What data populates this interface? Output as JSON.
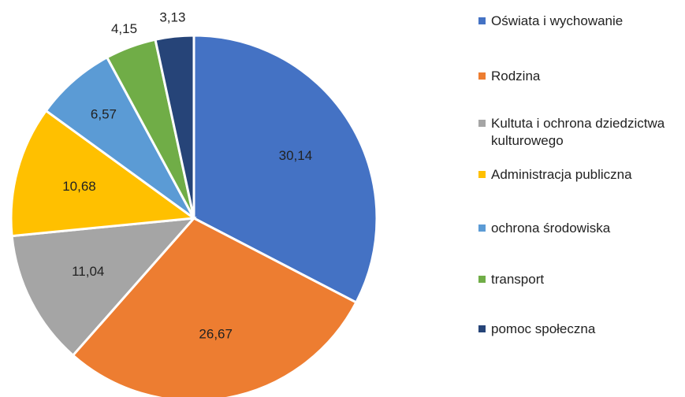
{
  "chart_data": {
    "type": "pie",
    "categories": [
      "Oświata i wychowanie",
      "Rodzina",
      "Kultuta i ochrona dziedzictwa kulturowego",
      "Administracja publiczna",
      "ochrona środowiska",
      "transport",
      "pomoc społeczna"
    ],
    "values": [
      30.14,
      26.67,
      11.04,
      10.68,
      6.57,
      4.15,
      3.13
    ],
    "value_labels": [
      "30,14",
      "26,67",
      "11,04",
      "10,68",
      "6,57",
      "4,15",
      "3,13"
    ],
    "colors": [
      "#4472c4",
      "#ed7d31",
      "#a5a5a5",
      "#ffc000",
      "#5b9bd5",
      "#70ad47",
      "#264478"
    ],
    "legend": "right"
  }
}
